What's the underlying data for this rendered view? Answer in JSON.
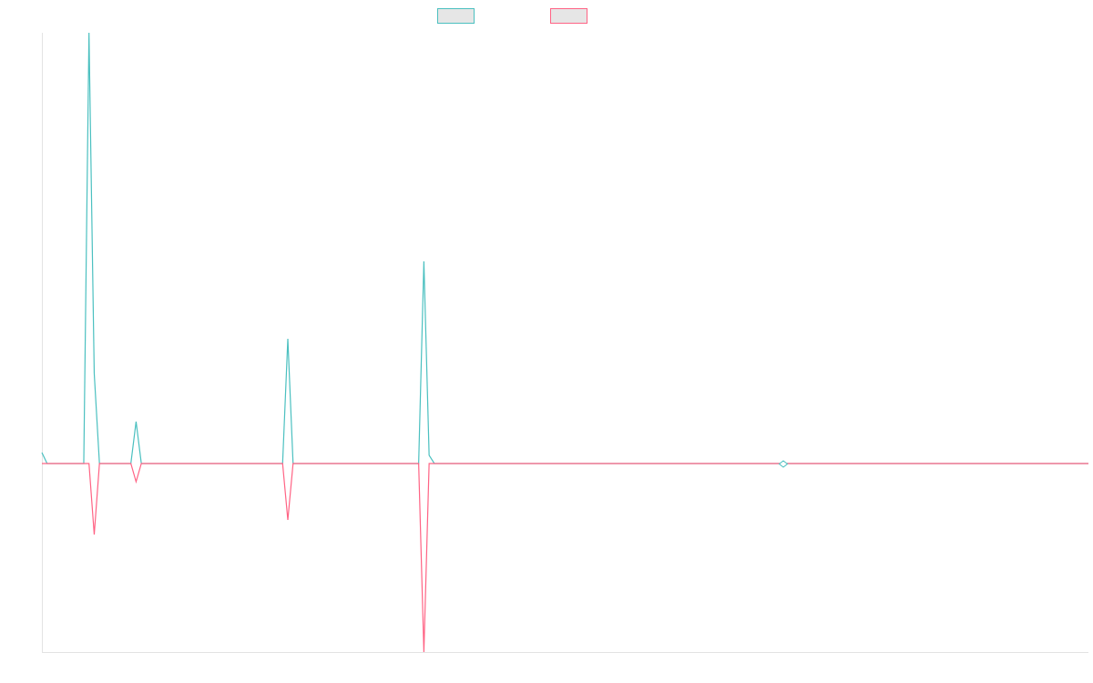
{
  "chart_data": {
    "type": "line",
    "x": [
      0,
      1,
      8,
      9,
      10,
      11,
      17,
      18,
      19,
      46,
      47,
      48,
      72,
      73,
      74,
      75,
      200
    ],
    "xlim": [
      0,
      200
    ],
    "ylim": [
      -207,
      473
    ],
    "series": [
      {
        "color": "#4bc0c0",
        "values": [
          12,
          0,
          0,
          473,
          99,
          0,
          0,
          46,
          0,
          0,
          137,
          0,
          0,
          222,
          9,
          0,
          0
        ]
      },
      {
        "color": "#ff6384",
        "values": [
          0,
          0,
          0,
          0,
          -78,
          0,
          0,
          -20,
          0,
          0,
          -62,
          0,
          0,
          -207,
          0,
          0,
          0
        ]
      }
    ]
  }
}
